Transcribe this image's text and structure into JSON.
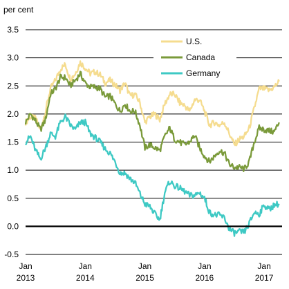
{
  "chart_data": {
    "type": "line",
    "unit_label": "per cent",
    "title": "",
    "xlabel": "",
    "ylabel": "per cent",
    "ylim": [
      -0.5,
      3.5
    ],
    "yticks": [
      "3.5",
      "3.0",
      "2.5",
      "2.0",
      "1.5",
      "1.0",
      "0.5",
      "0.0",
      "-0.5"
    ],
    "ytick_values": [
      3.5,
      3.0,
      2.5,
      2.0,
      1.5,
      1.0,
      0.5,
      0.0,
      -0.5
    ],
    "xlim": [
      "2013-01",
      "2017-04"
    ],
    "xticks": [
      {
        "month": "Jan",
        "year": "2013",
        "date": "2013-01"
      },
      {
        "month": "Jan",
        "year": "2014",
        "date": "2014-01"
      },
      {
        "month": "Jan",
        "year": "2015",
        "date": "2015-01"
      },
      {
        "month": "Jan",
        "year": "2016",
        "date": "2016-01"
      },
      {
        "month": "Jan",
        "year": "2017",
        "date": "2017-01"
      }
    ],
    "grid": true,
    "legend_placement": "top-right",
    "series": [
      {
        "name": "U.S.",
        "color": "#f5dc8f",
        "points": [
          [
            "2013-01",
            1.85
          ],
          [
            "2013-02",
            1.95
          ],
          [
            "2013-03",
            1.92
          ],
          [
            "2013-04",
            1.72
          ],
          [
            "2013-05",
            2.05
          ],
          [
            "2013-06",
            2.45
          ],
          [
            "2013-07",
            2.6
          ],
          [
            "2013-08",
            2.8
          ],
          [
            "2013-09",
            2.88
          ],
          [
            "2013-10",
            2.62
          ],
          [
            "2013-11",
            2.72
          ],
          [
            "2013-12",
            2.92
          ],
          [
            "2014-01",
            2.82
          ],
          [
            "2014-02",
            2.72
          ],
          [
            "2014-03",
            2.75
          ],
          [
            "2014-04",
            2.7
          ],
          [
            "2014-05",
            2.55
          ],
          [
            "2014-06",
            2.6
          ],
          [
            "2014-07",
            2.52
          ],
          [
            "2014-08",
            2.42
          ],
          [
            "2014-09",
            2.55
          ],
          [
            "2014-10",
            2.32
          ],
          [
            "2014-11",
            2.35
          ],
          [
            "2014-12",
            2.2
          ],
          [
            "2015-01",
            1.85
          ],
          [
            "2015-02",
            1.95
          ],
          [
            "2015-03",
            2.0
          ],
          [
            "2015-04",
            1.9
          ],
          [
            "2015-05",
            2.18
          ],
          [
            "2015-06",
            2.35
          ],
          [
            "2015-07",
            2.35
          ],
          [
            "2015-08",
            2.2
          ],
          [
            "2015-09",
            2.15
          ],
          [
            "2015-10",
            2.05
          ],
          [
            "2015-11",
            2.25
          ],
          [
            "2015-12",
            2.25
          ],
          [
            "2016-01",
            2.05
          ],
          [
            "2016-02",
            1.8
          ],
          [
            "2016-03",
            1.85
          ],
          [
            "2016-04",
            1.8
          ],
          [
            "2016-05",
            1.85
          ],
          [
            "2016-06",
            1.65
          ],
          [
            "2016-07",
            1.45
          ],
          [
            "2016-08",
            1.55
          ],
          [
            "2016-09",
            1.6
          ],
          [
            "2016-10",
            1.75
          ],
          [
            "2016-11",
            2.1
          ],
          [
            "2016-12",
            2.45
          ],
          [
            "2017-01",
            2.45
          ],
          [
            "2017-02",
            2.42
          ],
          [
            "2017-03",
            2.48
          ],
          [
            "2017-04",
            2.58
          ]
        ]
      },
      {
        "name": "Canada",
        "color": "#7a9a3a",
        "points": [
          [
            "2013-01",
            1.85
          ],
          [
            "2013-02",
            2.0
          ],
          [
            "2013-03",
            1.88
          ],
          [
            "2013-04",
            1.72
          ],
          [
            "2013-05",
            1.9
          ],
          [
            "2013-06",
            2.35
          ],
          [
            "2013-07",
            2.45
          ],
          [
            "2013-08",
            2.65
          ],
          [
            "2013-09",
            2.65
          ],
          [
            "2013-10",
            2.5
          ],
          [
            "2013-11",
            2.6
          ],
          [
            "2013-12",
            2.72
          ],
          [
            "2014-01",
            2.55
          ],
          [
            "2014-02",
            2.48
          ],
          [
            "2014-03",
            2.48
          ],
          [
            "2014-04",
            2.45
          ],
          [
            "2014-05",
            2.3
          ],
          [
            "2014-06",
            2.32
          ],
          [
            "2014-07",
            2.18
          ],
          [
            "2014-08",
            2.05
          ],
          [
            "2014-09",
            2.18
          ],
          [
            "2014-10",
            2.05
          ],
          [
            "2014-11",
            2.05
          ],
          [
            "2014-12",
            1.8
          ],
          [
            "2015-01",
            1.4
          ],
          [
            "2015-02",
            1.45
          ],
          [
            "2015-03",
            1.4
          ],
          [
            "2015-04",
            1.35
          ],
          [
            "2015-05",
            1.6
          ],
          [
            "2015-06",
            1.75
          ],
          [
            "2015-07",
            1.55
          ],
          [
            "2015-08",
            1.5
          ],
          [
            "2015-09",
            1.45
          ],
          [
            "2015-10",
            1.5
          ],
          [
            "2015-11",
            1.62
          ],
          [
            "2015-12",
            1.4
          ],
          [
            "2016-01",
            1.25
          ],
          [
            "2016-02",
            1.15
          ],
          [
            "2016-03",
            1.25
          ],
          [
            "2016-04",
            1.35
          ],
          [
            "2016-05",
            1.3
          ],
          [
            "2016-06",
            1.1
          ],
          [
            "2016-07",
            1.05
          ],
          [
            "2016-08",
            1.05
          ],
          [
            "2016-09",
            1.02
          ],
          [
            "2016-10",
            1.15
          ],
          [
            "2016-11",
            1.5
          ],
          [
            "2016-12",
            1.75
          ],
          [
            "2017-01",
            1.72
          ],
          [
            "2017-02",
            1.7
          ],
          [
            "2017-03",
            1.68
          ],
          [
            "2017-04",
            1.85
          ]
        ]
      },
      {
        "name": "Germany",
        "color": "#3ec9c4",
        "points": [
          [
            "2013-01",
            1.5
          ],
          [
            "2013-02",
            1.6
          ],
          [
            "2013-03",
            1.35
          ],
          [
            "2013-04",
            1.2
          ],
          [
            "2013-05",
            1.4
          ],
          [
            "2013-06",
            1.65
          ],
          [
            "2013-07",
            1.6
          ],
          [
            "2013-08",
            1.85
          ],
          [
            "2013-09",
            1.95
          ],
          [
            "2013-10",
            1.8
          ],
          [
            "2013-11",
            1.72
          ],
          [
            "2013-12",
            1.85
          ],
          [
            "2014-01",
            1.85
          ],
          [
            "2014-02",
            1.65
          ],
          [
            "2014-03",
            1.58
          ],
          [
            "2014-04",
            1.5
          ],
          [
            "2014-05",
            1.38
          ],
          [
            "2014-06",
            1.3
          ],
          [
            "2014-07",
            1.15
          ],
          [
            "2014-08",
            0.95
          ],
          [
            "2014-09",
            0.95
          ],
          [
            "2014-10",
            0.85
          ],
          [
            "2014-11",
            0.78
          ],
          [
            "2014-12",
            0.58
          ],
          [
            "2015-01",
            0.4
          ],
          [
            "2015-02",
            0.35
          ],
          [
            "2015-03",
            0.22
          ],
          [
            "2015-04",
            0.12
          ],
          [
            "2015-05",
            0.6
          ],
          [
            "2015-06",
            0.8
          ],
          [
            "2015-07",
            0.72
          ],
          [
            "2015-08",
            0.68
          ],
          [
            "2015-09",
            0.62
          ],
          [
            "2015-10",
            0.55
          ],
          [
            "2015-11",
            0.55
          ],
          [
            "2015-12",
            0.6
          ],
          [
            "2016-01",
            0.5
          ],
          [
            "2016-02",
            0.25
          ],
          [
            "2016-03",
            0.2
          ],
          [
            "2016-04",
            0.2
          ],
          [
            "2016-05",
            0.15
          ],
          [
            "2016-06",
            -0.05
          ],
          [
            "2016-07",
            -0.12
          ],
          [
            "2016-08",
            -0.1
          ],
          [
            "2016-09",
            -0.1
          ],
          [
            "2016-10",
            0.05
          ],
          [
            "2016-11",
            0.25
          ],
          [
            "2016-12",
            0.22
          ],
          [
            "2017-01",
            0.38
          ],
          [
            "2017-02",
            0.3
          ],
          [
            "2017-03",
            0.38
          ],
          [
            "2017-04",
            0.4
          ]
        ]
      }
    ]
  }
}
